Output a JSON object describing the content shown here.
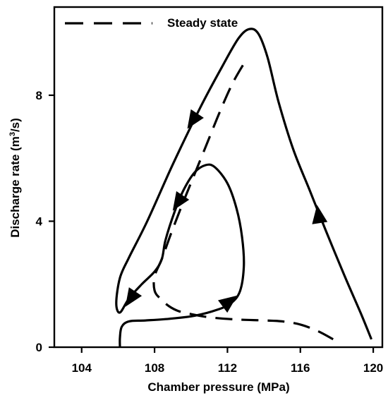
{
  "chart_data": {
    "type": "line",
    "xlabel": "Chamber pressure (MPa)",
    "ylabel_main": "Discharge rate (m",
    "ylabel_sup": "3",
    "ylabel_end": "/s)",
    "xlim": [
      102.5,
      120.5
    ],
    "ylim": [
      0,
      10.8
    ],
    "x_ticks": [
      104,
      108,
      112,
      116,
      120
    ],
    "y_ticks": [
      0,
      4,
      8
    ],
    "x_tick_labels": [
      "104",
      "108",
      "112",
      "116",
      "120"
    ],
    "y_tick_labels": [
      "0",
      "4",
      "8"
    ],
    "grid": false,
    "legend_position": "top-left",
    "series": [
      {
        "name": "Steady state",
        "style": "dashed",
        "color": "#000000",
        "points": [
          [
            117.8,
            0.25
          ],
          [
            117.0,
            0.5
          ],
          [
            116.0,
            0.72
          ],
          [
            115.0,
            0.82
          ],
          [
            114.0,
            0.85
          ],
          [
            112.5,
            0.88
          ],
          [
            111.0,
            0.95
          ],
          [
            110.0,
            1.05
          ],
          [
            109.3,
            1.15
          ],
          [
            108.8,
            1.3
          ],
          [
            108.3,
            1.55
          ],
          [
            108.0,
            1.8
          ],
          [
            108.0,
            2.25
          ],
          [
            108.4,
            2.8
          ],
          [
            108.9,
            3.6
          ],
          [
            109.5,
            4.5
          ],
          [
            110.2,
            5.5
          ],
          [
            110.9,
            6.5
          ],
          [
            111.6,
            7.5
          ],
          [
            112.3,
            8.4
          ],
          [
            113.0,
            9.1
          ]
        ]
      },
      {
        "name": "",
        "style": "solid",
        "color": "#000000",
        "points": [
          [
            106.1,
            0.0
          ],
          [
            106.1,
            0.3
          ],
          [
            106.2,
            0.65
          ],
          [
            106.6,
            0.82
          ],
          [
            107.5,
            0.85
          ],
          [
            108.8,
            0.9
          ],
          [
            110.2,
            1.0
          ],
          [
            111.4,
            1.18
          ],
          [
            112.2,
            1.4
          ],
          [
            112.7,
            1.8
          ],
          [
            112.9,
            2.6
          ],
          [
            112.8,
            3.5
          ],
          [
            112.5,
            4.4
          ],
          [
            112.0,
            5.2
          ],
          [
            111.3,
            5.72
          ],
          [
            110.8,
            5.78
          ],
          [
            110.2,
            5.55
          ],
          [
            109.6,
            5.0
          ],
          [
            109.1,
            4.3
          ],
          [
            108.6,
            3.4
          ],
          [
            108.4,
            2.8
          ],
          [
            108.0,
            2.4
          ],
          [
            107.3,
            2.0
          ],
          [
            106.6,
            1.55
          ],
          [
            106.1,
            1.1
          ],
          [
            105.9,
            1.4
          ],
          [
            106.1,
            2.2
          ],
          [
            106.6,
            2.85
          ],
          [
            107.6,
            4.0
          ],
          [
            109.0,
            5.8
          ],
          [
            110.5,
            7.6
          ],
          [
            111.7,
            8.9
          ],
          [
            112.6,
            9.8
          ],
          [
            113.2,
            10.1
          ],
          [
            113.7,
            9.95
          ],
          [
            114.2,
            9.2
          ],
          [
            114.8,
            7.8
          ],
          [
            115.6,
            6.3
          ],
          [
            116.5,
            5.0
          ],
          [
            117.4,
            3.7
          ],
          [
            118.4,
            2.3
          ],
          [
            119.3,
            1.1
          ],
          [
            119.9,
            0.25
          ]
        ]
      }
    ],
    "arrows": [
      {
        "x": 110.1,
        "y": 7.2,
        "dir": "down-left"
      },
      {
        "x": 109.3,
        "y": 4.6,
        "dir": "down-left"
      },
      {
        "x": 106.7,
        "y": 1.55,
        "dir": "down-left"
      },
      {
        "x": 112.1,
        "y": 1.45,
        "dir": "up-right"
      },
      {
        "x": 117.0,
        "y": 4.2,
        "dir": "up"
      }
    ]
  }
}
